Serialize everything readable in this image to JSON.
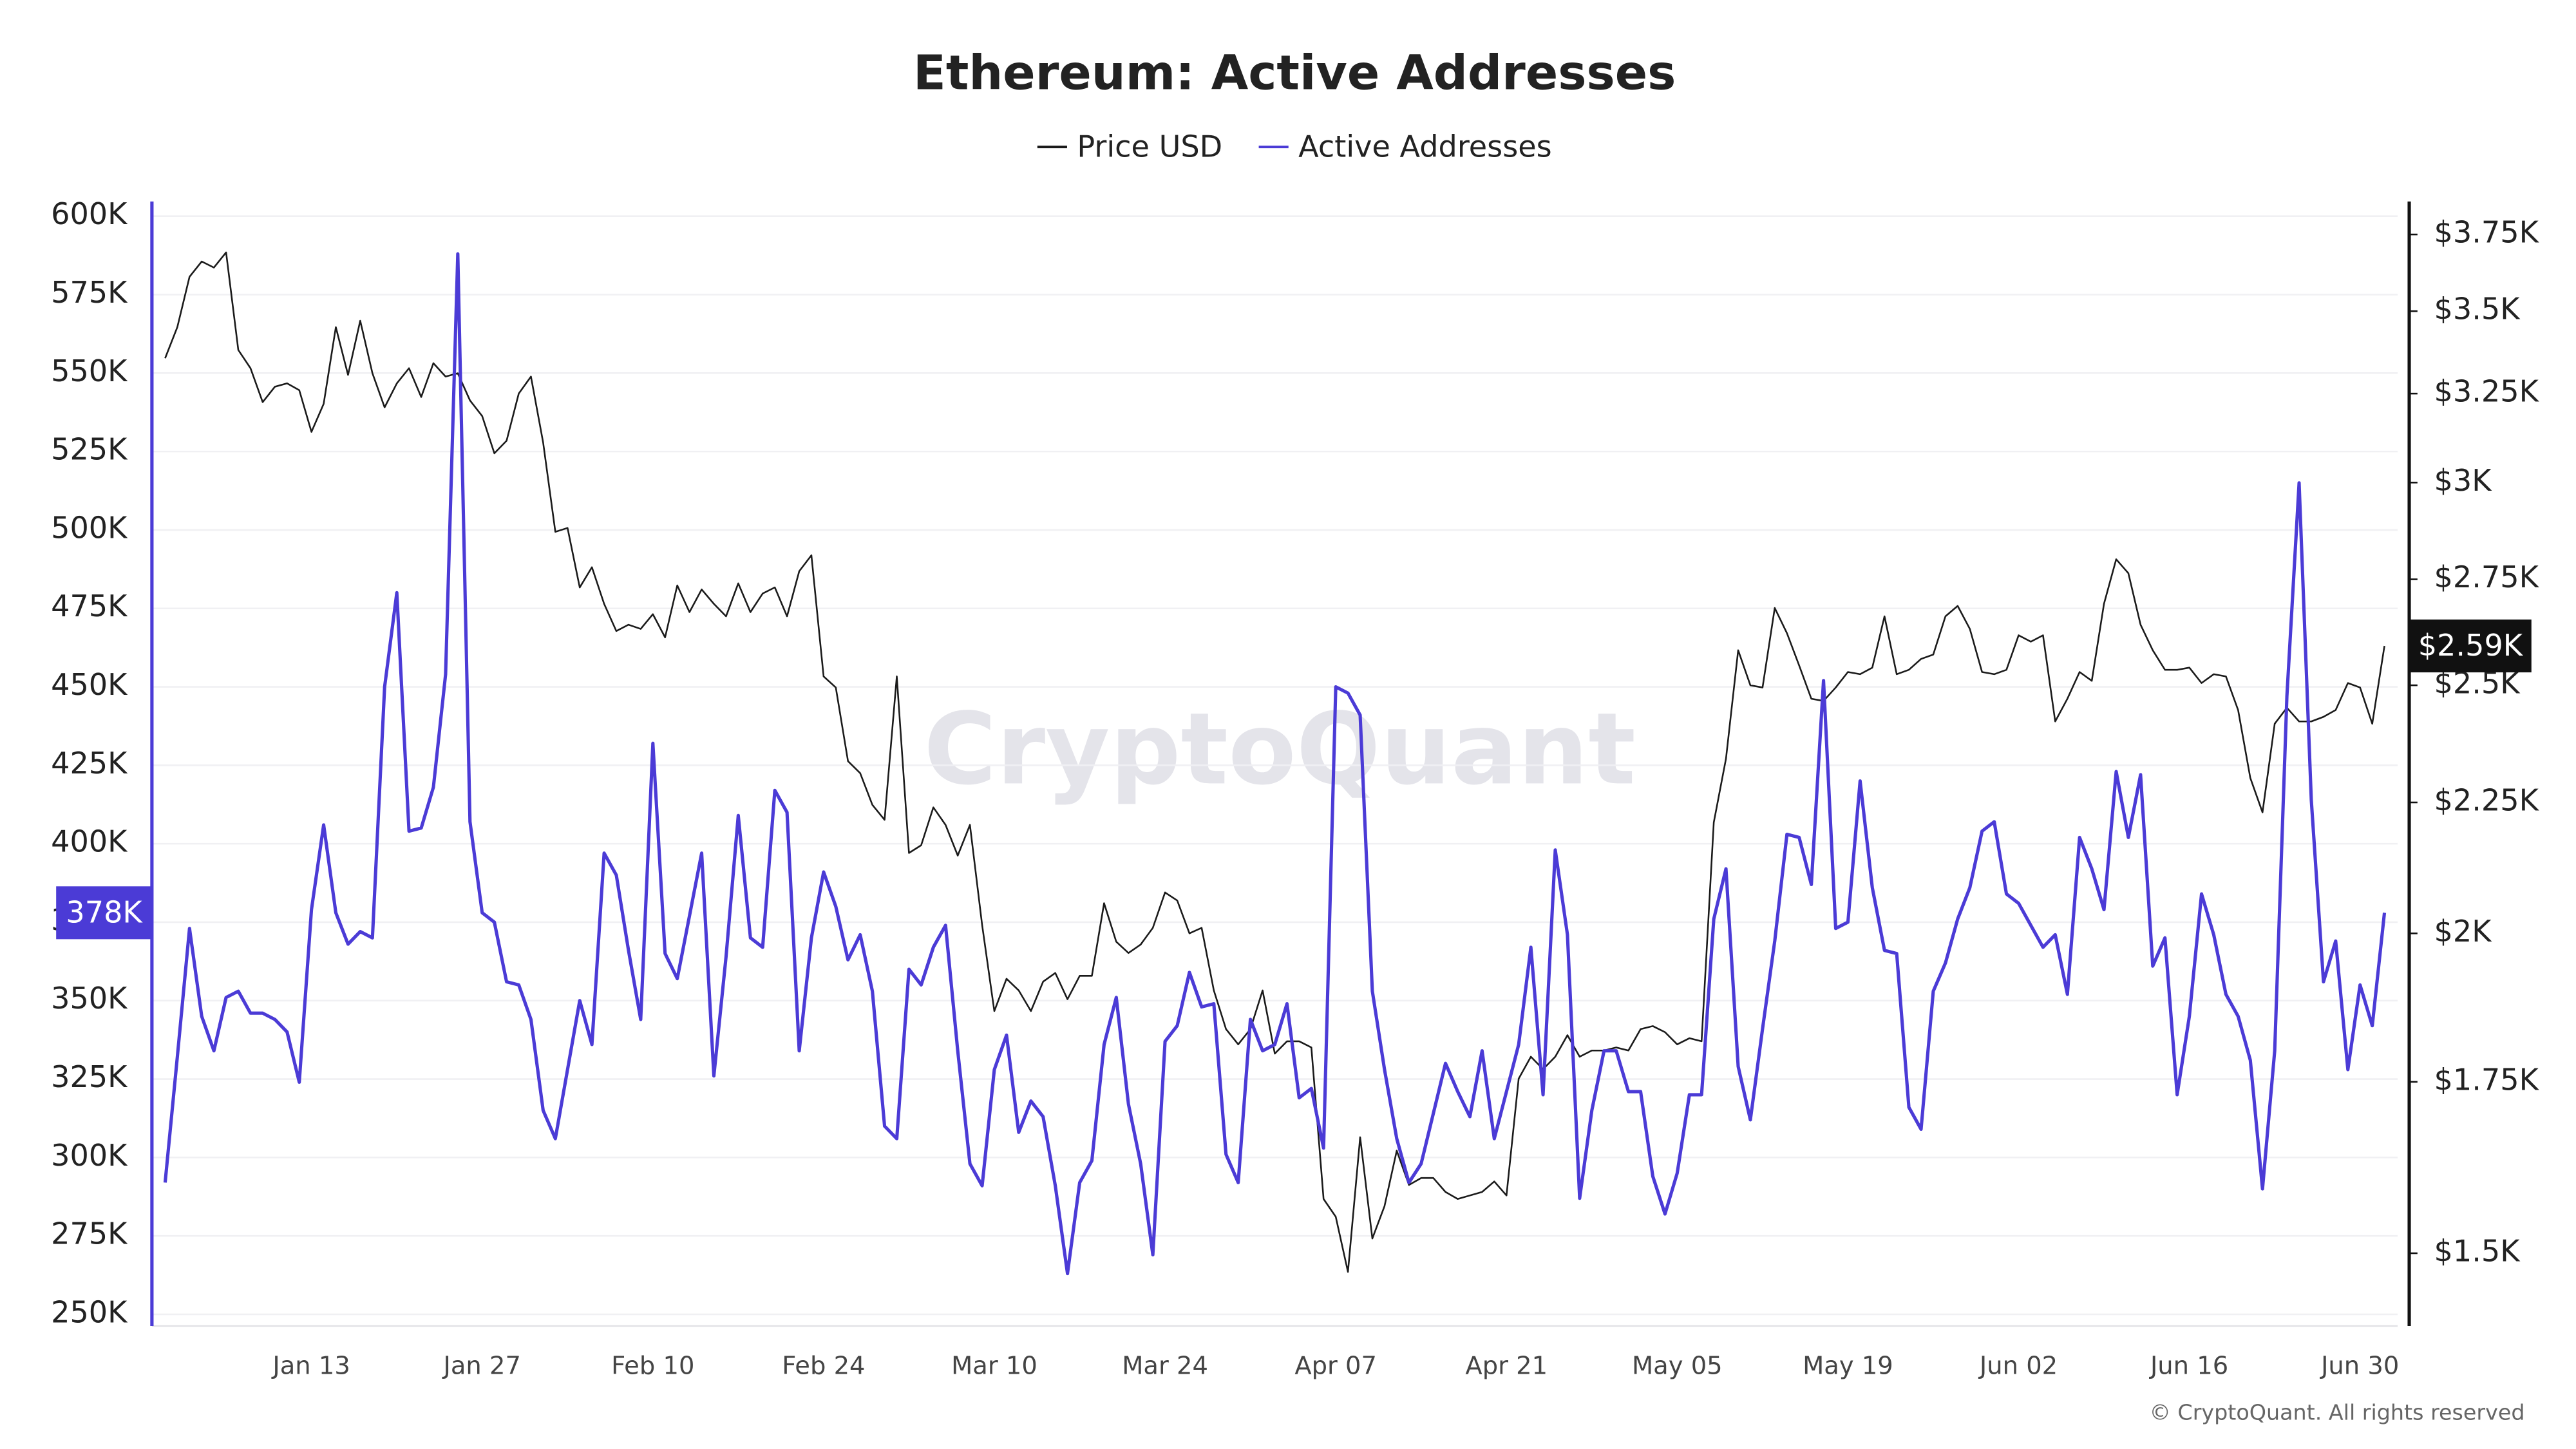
{
  "chart_data": {
    "type": "line",
    "title": "Ethereum: Active Addresses",
    "watermark": "CryptoQuant",
    "copyright": "© CryptoQuant. All rights reserved",
    "categories": [
      null,
      null,
      null,
      null,
      null,
      null,
      null,
      null,
      null,
      null,
      null,
      null,
      "Jan 13",
      null,
      null,
      null,
      null,
      null,
      null,
      null,
      null,
      null,
      null,
      null,
      null,
      null,
      "Jan 27",
      null,
      null,
      null,
      null,
      null,
      null,
      null,
      null,
      null,
      null,
      null,
      null,
      null,
      "Feb 10",
      null,
      null,
      null,
      null,
      null,
      null,
      null,
      null,
      null,
      null,
      null,
      null,
      null,
      "Feb 24",
      null,
      null,
      null,
      null,
      null,
      null,
      null,
      null,
      null,
      null,
      null,
      null,
      null,
      "Mar 10",
      null,
      null,
      null,
      null,
      null,
      null,
      null,
      null,
      null,
      null,
      null,
      null,
      null,
      "Mar 24",
      null,
      null,
      null,
      null,
      null,
      null,
      null,
      null,
      null,
      null,
      null,
      null,
      null,
      "Apr 07",
      null,
      null,
      null,
      null,
      null,
      null,
      null,
      null,
      null,
      null,
      null,
      null,
      null,
      "Apr 21",
      null,
      null,
      null,
      null,
      null,
      null,
      null,
      null,
      null,
      null,
      null,
      null,
      null,
      "May 05",
      null,
      null,
      null,
      null,
      null,
      null,
      null,
      null,
      null,
      null,
      null,
      null,
      null,
      "May 19",
      null,
      null,
      null,
      null,
      null,
      null,
      null,
      null,
      null,
      null,
      null,
      null,
      null,
      "Jun 02",
      null,
      null,
      null,
      null,
      null,
      null,
      null,
      null,
      null,
      null,
      null,
      null,
      null,
      "Jun 16",
      null,
      null,
      null,
      null,
      null,
      null,
      null,
      null,
      null,
      null,
      null,
      null,
      null,
      "Jun 30",
      null,
      null
    ],
    "series": [
      {
        "name": "Price USD",
        "color": "#1a1a1a",
        "axis": "y2",
        "last_label": "$2.59K",
        "values": [
          3355,
          3450,
          3610,
          3660,
          3640,
          3690,
          3380,
          3325,
          3225,
          3270,
          3280,
          3260,
          3140,
          3220,
          3450,
          3305,
          3470,
          3310,
          3210,
          3280,
          3325,
          3240,
          3340,
          3300,
          3310,
          3230,
          3185,
          3080,
          3115,
          3250,
          3300,
          3110,
          2870,
          2880,
          2730,
          2780,
          2690,
          2625,
          2640,
          2630,
          2665,
          2610,
          2735,
          2670,
          2725,
          2690,
          2660,
          2740,
          2670,
          2715,
          2730,
          2660,
          2770,
          2810,
          2520,
          2495,
          2335,
          2310,
          2245,
          2215,
          2520,
          2150,
          2165,
          2240,
          2205,
          2145,
          2205,
          2015,
          1865,
          1920,
          1900,
          1865,
          1915,
          1930,
          1885,
          1925,
          1925,
          2055,
          1985,
          1965,
          1980,
          2010,
          2075,
          2060,
          2000,
          2010,
          1900,
          1835,
          1810,
          1835,
          1900,
          1795,
          1815,
          1815,
          1805,
          1575,
          1550,
          1475,
          1665,
          1520,
          1565,
          1645,
          1595,
          1605,
          1605,
          1585,
          1575,
          1580,
          1585,
          1600,
          1580,
          1755,
          1790,
          1770,
          1790,
          1825,
          1790,
          1800,
          1800,
          1805,
          1800,
          1835,
          1840,
          1830,
          1810,
          1820,
          1815,
          2210,
          2340,
          2580,
          2500,
          2495,
          2680,
          2620,
          2545,
          2470,
          2465,
          2495,
          2530,
          2525,
          2540,
          2660,
          2525,
          2535,
          2560,
          2570,
          2660,
          2685,
          2630,
          2530,
          2525,
          2535,
          2615,
          2600,
          2615,
          2420,
          2470,
          2530,
          2510,
          2690,
          2800,
          2765,
          2640,
          2580,
          2535,
          2535,
          2540,
          2505,
          2525,
          2520,
          2445,
          2300,
          2230,
          2415,
          2450,
          2420,
          2420,
          2430,
          2445,
          2505,
          2495,
          2415,
          2590
        ]
      },
      {
        "name": "Active Addresses",
        "color": "#4b3bd6",
        "last_label": "378K",
        "values": [
          292000,
          332000,
          373000,
          345000,
          334000,
          351000,
          353000,
          346000,
          346000,
          344000,
          340000,
          324000,
          379000,
          406000,
          378000,
          368000,
          372000,
          370000,
          450000,
          480000,
          404000,
          405000,
          418000,
          454000,
          588000,
          407000,
          378000,
          375000,
          356000,
          355000,
          344000,
          315000,
          306000,
          328000,
          350000,
          336000,
          397000,
          390000,
          366000,
          344000,
          432000,
          365000,
          357000,
          377000,
          397000,
          326000,
          364000,
          409000,
          370000,
          367000,
          417000,
          410000,
          334000,
          370000,
          391000,
          380000,
          363000,
          371000,
          353000,
          310000,
          306000,
          360000,
          355000,
          367000,
          374000,
          334000,
          298000,
          291000,
          328000,
          339000,
          308000,
          318000,
          313000,
          291000,
          263000,
          292000,
          299000,
          336000,
          351000,
          317000,
          298000,
          269000,
          337000,
          342000,
          359000,
          348000,
          349000,
          301000,
          292000,
          344000,
          334000,
          336000,
          349000,
          319000,
          322000,
          303000,
          450000,
          448000,
          441000,
          353000,
          328000,
          306000,
          292000,
          298000,
          314000,
          330000,
          321000,
          313000,
          334000,
          306000,
          321000,
          336000,
          367000,
          320000,
          398000,
          371000,
          287000,
          315000,
          334000,
          334000,
          321000,
          321000,
          294000,
          282000,
          295000,
          320000,
          320000,
          376000,
          392000,
          329000,
          312000,
          341000,
          369000,
          403000,
          402000,
          387000,
          452000,
          373000,
          375000,
          420000,
          386000,
          366000,
          365000,
          316000,
          309000,
          353000,
          362000,
          376000,
          386000,
          404000,
          407000,
          384000,
          381000,
          374000,
          367000,
          371000,
          352000,
          402000,
          392000,
          379000,
          423000,
          402000,
          422000,
          361000,
          370000,
          320000,
          345000,
          384000,
          371000,
          352000,
          345000,
          331000,
          290000,
          334000,
          447000,
          515000,
          414000,
          356000,
          369000,
          328000,
          355000,
          342000,
          378000
        ]
      }
    ],
    "ylim": [
      246300,
      604700
    ],
    "yticks": [
      {
        "value": 250000,
        "label": "250K"
      },
      {
        "value": 275000,
        "label": "275K"
      },
      {
        "value": 300000,
        "label": "300K"
      },
      {
        "value": 325000,
        "label": "325K"
      },
      {
        "value": 350000,
        "label": "350K"
      },
      {
        "value": 375000,
        "label": "375K"
      },
      {
        "value": 400000,
        "label": "400K"
      },
      {
        "value": 425000,
        "label": "425K"
      },
      {
        "value": 450000,
        "label": "450K"
      },
      {
        "value": 475000,
        "label": "475K"
      },
      {
        "value": 500000,
        "label": "500K"
      },
      {
        "value": 525000,
        "label": "525K"
      },
      {
        "value": 550000,
        "label": "550K"
      },
      {
        "value": 575000,
        "label": "575K"
      },
      {
        "value": 600000,
        "label": "600K"
      }
    ],
    "y2lim": [
      1405,
      3863
    ],
    "y2log": true,
    "y2ticks": [
      {
        "value": 1500,
        "label": "$1.5K"
      },
      {
        "value": 1750,
        "label": "$1.75K"
      },
      {
        "value": 2000,
        "label": "$2K"
      },
      {
        "value": 2250,
        "label": "$2.25K"
      },
      {
        "value": 2500,
        "label": "$2.5K"
      },
      {
        "value": 2750,
        "label": "$2.75K"
      },
      {
        "value": 3000,
        "label": "$3K"
      },
      {
        "value": 3250,
        "label": "$3.25K"
      },
      {
        "value": 3500,
        "label": "$3.5K"
      },
      {
        "value": 3750,
        "label": "$3.75K"
      }
    ],
    "grid": true,
    "legend": "top"
  }
}
